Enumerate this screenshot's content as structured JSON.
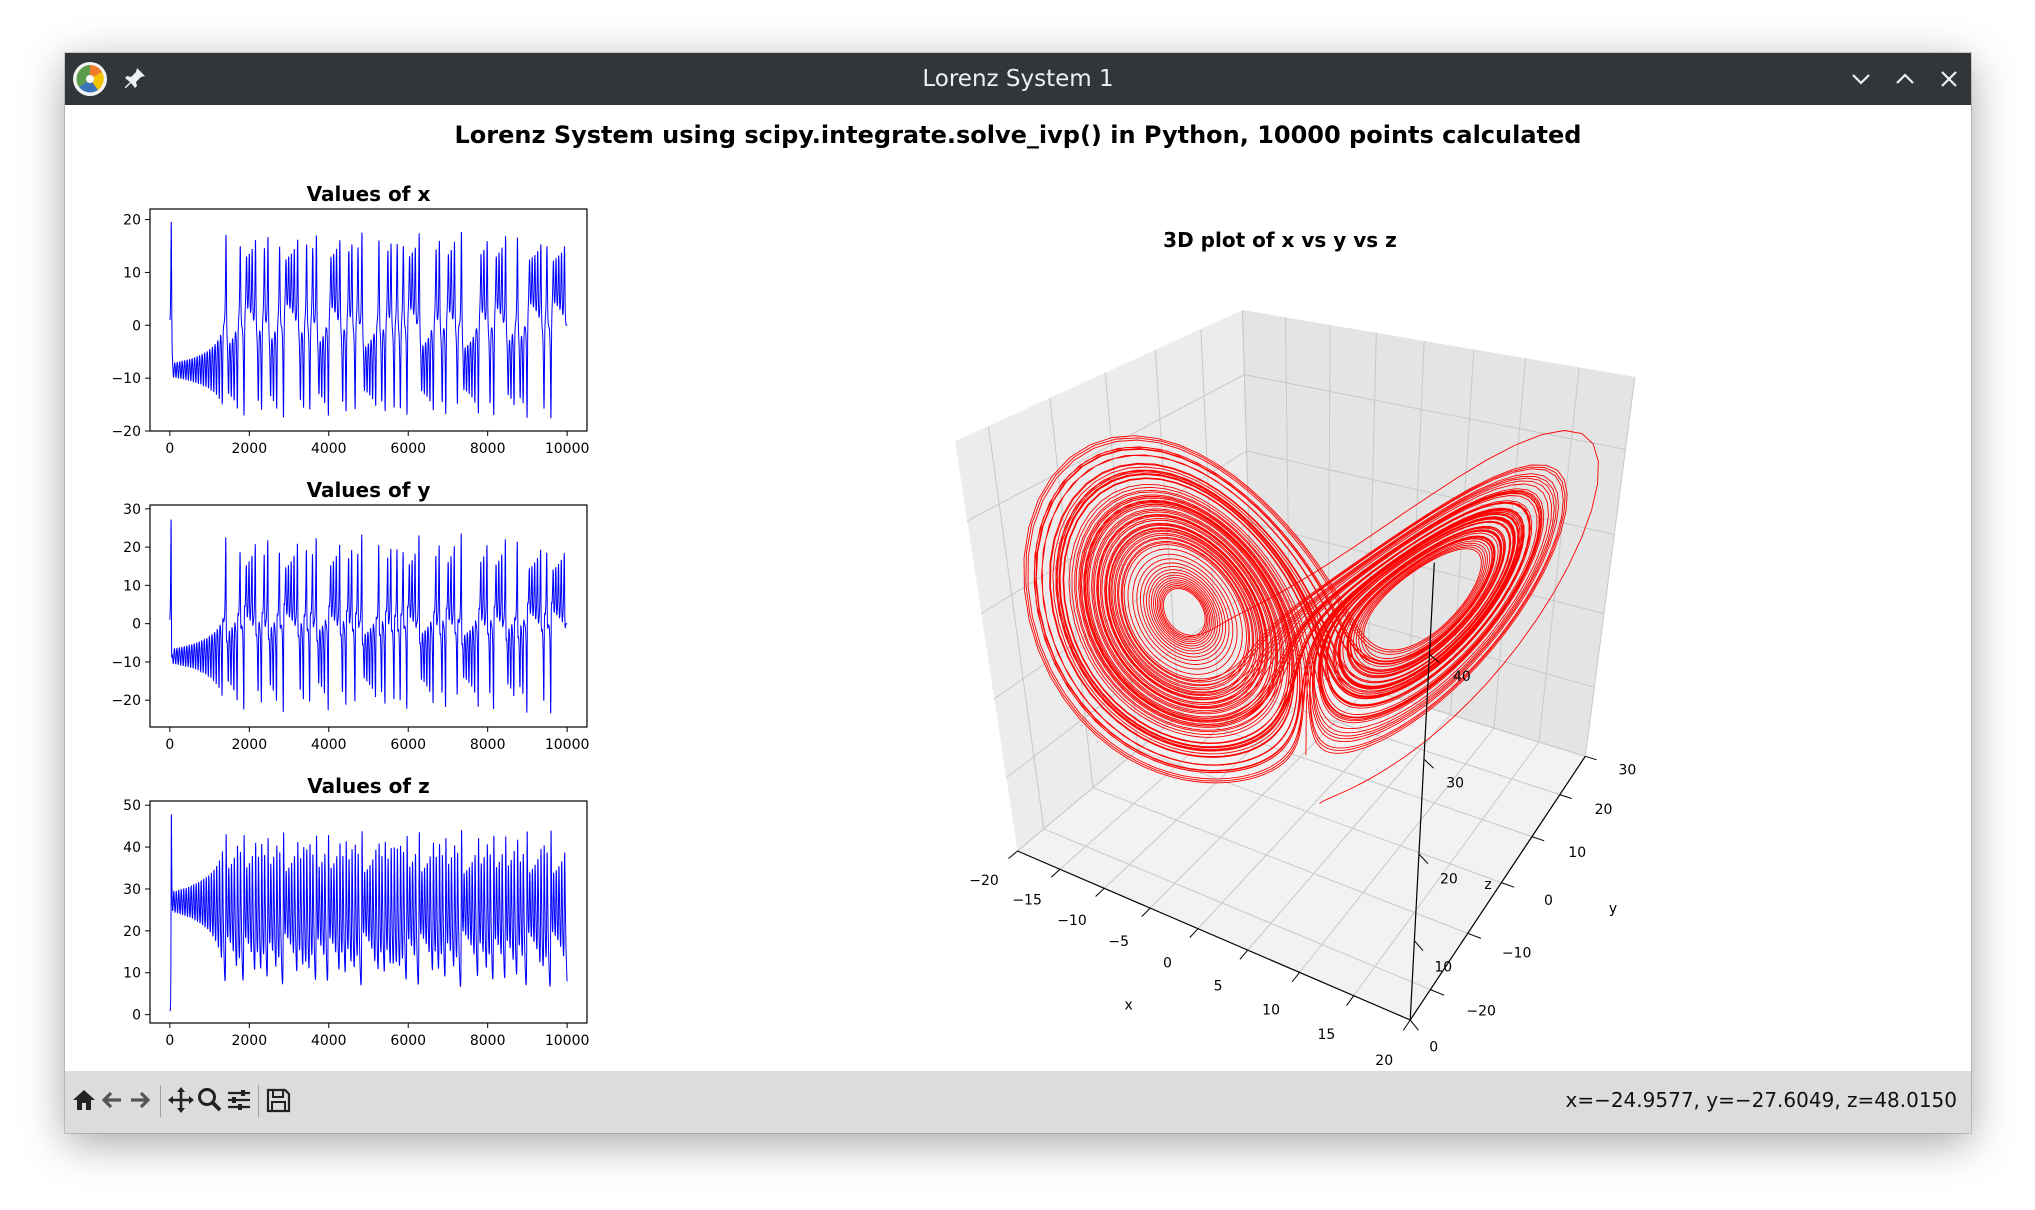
{
  "window": {
    "title": "Lorenz System 1"
  },
  "figure": {
    "suptitle": "Lorenz System using scipy.integrate.solve_ivp() in Python, 10000 points calculated"
  },
  "status": {
    "coords": "x=−24.9577, y=−27.6049, z=48.0150"
  },
  "toolbar": {
    "buttons": [
      "home-icon",
      "back-arrow-icon",
      "forward-arrow-icon",
      "pan-icon",
      "zoom-icon",
      "configure-subplots-icon",
      "save-icon"
    ]
  },
  "colors": {
    "series_2d": "#0000ff",
    "series_3d": "#ff0000",
    "titlebar": "#31363b",
    "toolbar": "#dcdcdc"
  },
  "chart_data": [
    {
      "type": "line",
      "title": "Values of x",
      "xlim": [
        -500,
        10500
      ],
      "ylim": [
        -20,
        22
      ],
      "xticks": [
        0,
        2000,
        4000,
        6000,
        8000,
        10000
      ],
      "xtick_labels": [
        "0",
        "2000",
        "4000",
        "6000",
        "8000",
        "10000"
      ],
      "yticks": [
        20,
        10,
        0,
        -10,
        -20
      ],
      "ytick_labels": [
        "20",
        "10",
        "0",
        "−10",
        "−20"
      ],
      "series": [
        {
          "values": []
        }
      ],
      "grid": false
    },
    {
      "type": "line",
      "title": "Values of y",
      "xlim": [
        -500,
        10500
      ],
      "ylim": [
        -27,
        31
      ],
      "xticks": [
        0,
        2000,
        4000,
        6000,
        8000,
        10000
      ],
      "xtick_labels": [
        "0",
        "2000",
        "4000",
        "6000",
        "8000",
        "10000"
      ],
      "yticks": [
        30,
        20,
        10,
        0,
        -10,
        -20
      ],
      "ytick_labels": [
        "30",
        "20",
        "10",
        "0",
        "−10",
        "−20"
      ],
      "series": [
        {
          "values": []
        }
      ],
      "grid": false
    },
    {
      "type": "line",
      "title": "Values of z",
      "xlim": [
        -500,
        10500
      ],
      "ylim": [
        -2,
        51
      ],
      "xticks": [
        0,
        2000,
        4000,
        6000,
        8000,
        10000
      ],
      "xtick_labels": [
        "0",
        "2000",
        "4000",
        "6000",
        "8000",
        "10000"
      ],
      "yticks": [
        50,
        40,
        30,
        20,
        10,
        0
      ],
      "ytick_labels": [
        "50",
        "40",
        "30",
        "20",
        "10",
        "0"
      ],
      "series": [
        {
          "values": []
        }
      ],
      "grid": false
    },
    {
      "type": "line",
      "title": "3D plot of x vs y vs z",
      "xlabel": "x",
      "ylabel": "y",
      "zlabel": "z",
      "xlim": [
        -20,
        20
      ],
      "ylim": [
        -25,
        30
      ],
      "zlim": [
        0,
        48
      ],
      "xticks": [
        -20,
        -15,
        -10,
        -5,
        0,
        5,
        10,
        15,
        20
      ],
      "xtick_labels": [
        "−20",
        "−15",
        "−10",
        "−5",
        "0",
        "5",
        "10",
        "15",
        "20"
      ],
      "yticks": [
        -20,
        -10,
        0,
        10,
        20,
        30
      ],
      "ytick_labels": [
        "−20",
        "−10",
        "0",
        "10",
        "20",
        "30"
      ],
      "zticks": [
        0,
        10,
        20,
        30,
        40
      ],
      "ztick_labels": [
        "0",
        "10",
        "20",
        "30",
        "40"
      ],
      "series": [
        {
          "points": []
        }
      ],
      "grid": true
    }
  ]
}
